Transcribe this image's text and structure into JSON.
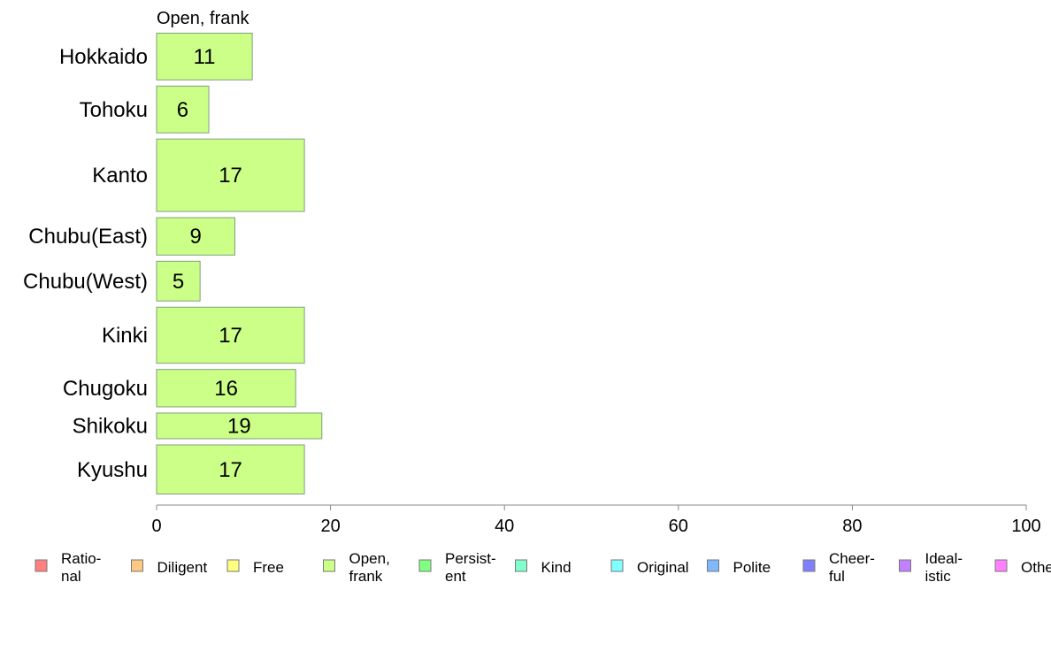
{
  "chart_data": {
    "type": "bar",
    "orientation": "horizontal",
    "title": "Open, frank",
    "categories": [
      "Hokkaido",
      "Tohoku",
      "Kanto",
      "Chubu(East)",
      "Chubu(West)",
      "Kinki",
      "Chugoku",
      "Shikoku",
      "Kyushu"
    ],
    "values": [
      11,
      6,
      17,
      9,
      5,
      17,
      16,
      19,
      17
    ],
    "relative_bar_thickness": [
      1.0,
      1.0,
      1.55,
      0.8,
      0.85,
      1.2,
      0.8,
      0.55,
      1.05
    ],
    "xlim": [
      0,
      100
    ],
    "x_ticks": [
      0,
      20,
      40,
      60,
      80,
      100
    ],
    "xlabel": "",
    "ylabel": "",
    "grid": false,
    "bar_color": "#ccff88",
    "bar_edge_color": "#7f9f7f",
    "legend": {
      "position": "bottom",
      "entries": [
        {
          "label": "Ratio-\nnal",
          "color": "#ff8080"
        },
        {
          "label": "Diligent",
          "color": "#ffc880"
        },
        {
          "label": "Free",
          "color": "#ffff80"
        },
        {
          "label": "Open,\nfrank",
          "color": "#ccff88"
        },
        {
          "label": "Persist-\nent",
          "color": "#80ff80"
        },
        {
          "label": "Kind",
          "color": "#80ffcc"
        },
        {
          "label": "Original",
          "color": "#80ffff"
        },
        {
          "label": "Polite",
          "color": "#80b8ff"
        },
        {
          "label": "Cheer-\nful",
          "color": "#8080ff"
        },
        {
          "label": "Ideal-\nistic",
          "color": "#c080ff"
        },
        {
          "label": "Other",
          "color": "#ff80ff"
        }
      ]
    }
  }
}
